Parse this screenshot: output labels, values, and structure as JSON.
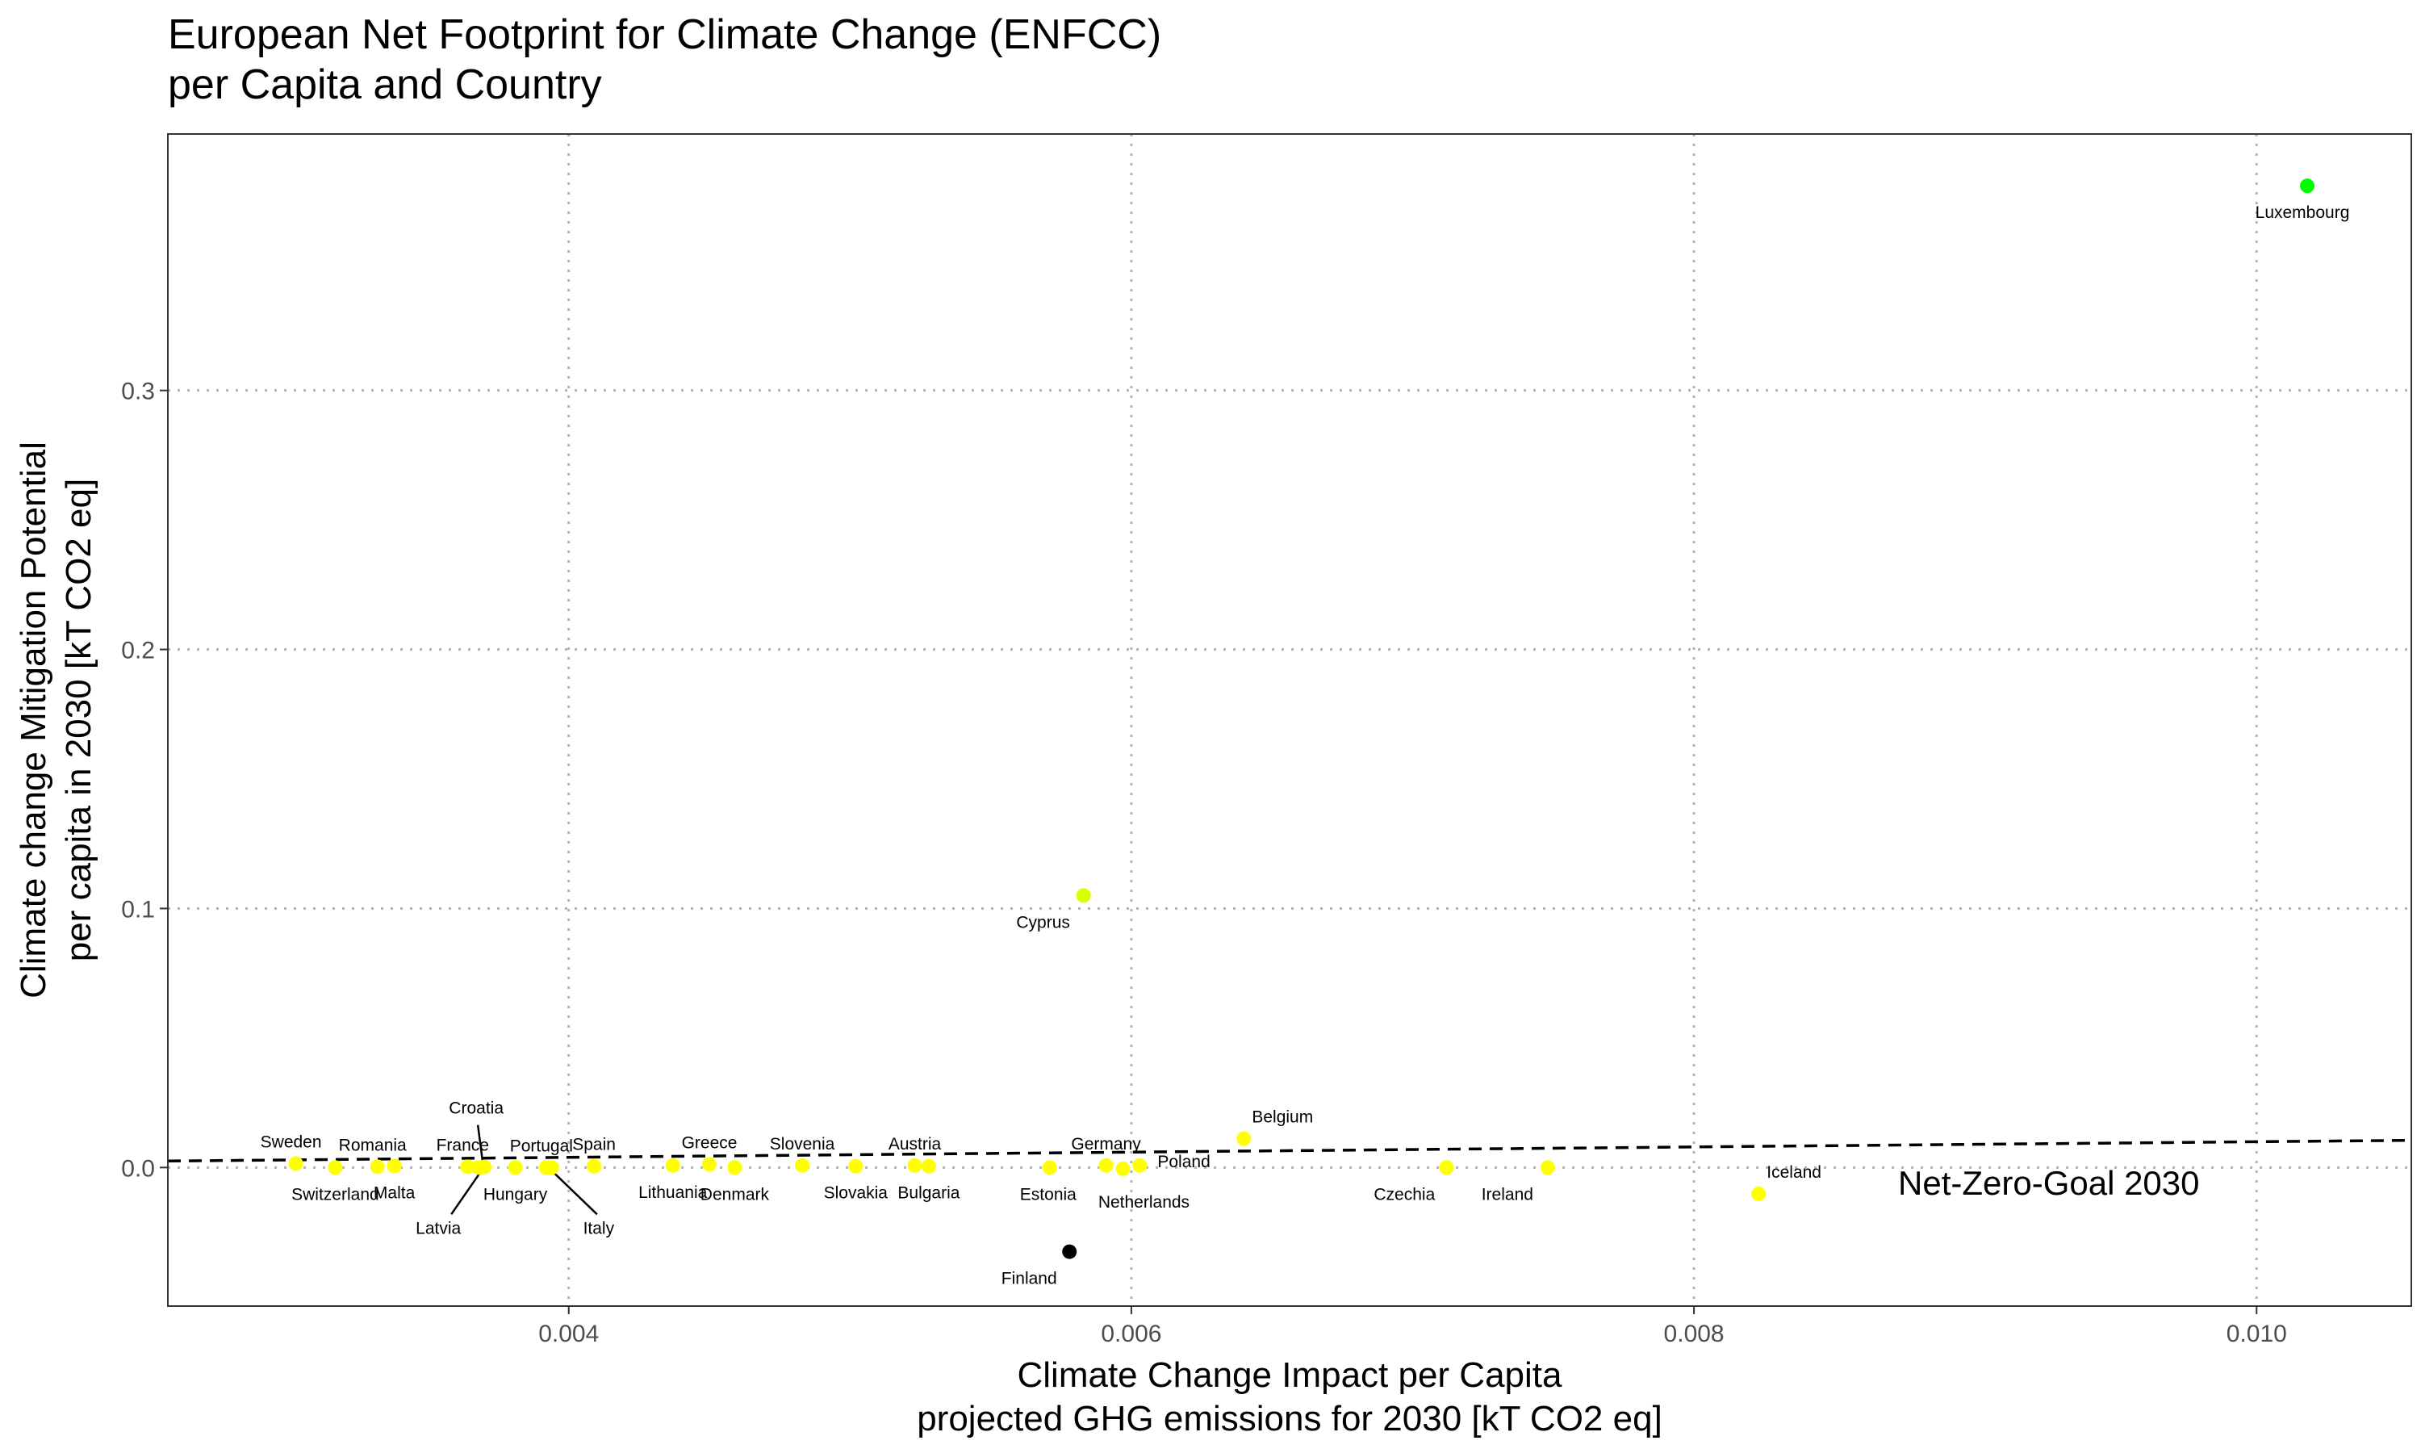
{
  "chart_data": {
    "type": "scatter",
    "title": [
      "European Net Footprint for Climate Change (ENFCC)",
      "per Capita and Country"
    ],
    "xlabel": [
      "Climate Change Impact per Capita",
      "projected GHG emissions for 2030 [kT CO2 eq]"
    ],
    "ylabel": [
      "Climate change Mitigation Potential",
      "per capita in 2030 [kT CO2 eq]"
    ],
    "xlim": [
      0.002575,
      0.01055
    ],
    "ylim": [
      -0.0535,
      0.399
    ],
    "xticks": [
      0.004,
      0.006,
      0.008,
      0.01
    ],
    "xtick_labels": [
      "0.004",
      "0.006",
      "0.008",
      "0.010"
    ],
    "yticks": [
      0.0,
      0.1,
      0.2,
      0.3
    ],
    "ytick_labels": [
      "0.0",
      "0.1",
      "0.2",
      "0.3"
    ],
    "grid": "dotted",
    "reference_line": {
      "label": "Net-Zero-Goal 2030",
      "x0": 0.002575,
      "y0": 0.0025,
      "x1": 0.01055,
      "y1": 0.0105
    },
    "points": [
      {
        "label": "Sweden",
        "x": 0.00303,
        "y": 0.0015,
        "color": "#ffff00",
        "label_pos": "above"
      },
      {
        "label": "Switzerland",
        "x": 0.00317,
        "y": 0.0,
        "color": "#ffff00",
        "label_pos": "below"
      },
      {
        "label": "Romania",
        "x": 0.00332,
        "y": 0.0003,
        "color": "#ffff00",
        "label_pos": "above"
      },
      {
        "label": "Malta",
        "x": 0.00338,
        "y": 0.0006,
        "color": "#ffff00",
        "label_pos": "below"
      },
      {
        "label": "France",
        "x": 0.00364,
        "y": 0.0003,
        "color": "#ffff00",
        "label_pos": "above"
      },
      {
        "label": "Latvia",
        "x": 0.00368,
        "y": 0.0,
        "color": "#ffff00",
        "label_pos": "below"
      },
      {
        "label": "Croatia",
        "x": 0.0037,
        "y": 0.0002,
        "color": "#ffff00",
        "label_pos": "above"
      },
      {
        "label": "Hungary",
        "x": 0.00381,
        "y": 0.0,
        "color": "#ffff00",
        "label_pos": "below"
      },
      {
        "label": "Portugal",
        "x": 0.00392,
        "y": 0.0,
        "color": "#ffff00",
        "label_pos": "above"
      },
      {
        "label": "Italy",
        "x": 0.00394,
        "y": 0.0,
        "color": "#ffff00",
        "label_pos": "below"
      },
      {
        "label": "Spain",
        "x": 0.00409,
        "y": 0.0005,
        "color": "#ffff00",
        "label_pos": "above"
      },
      {
        "label": "Lithuania",
        "x": 0.00437,
        "y": 0.0008,
        "color": "#ffff00",
        "label_pos": "below"
      },
      {
        "label": "Greece",
        "x": 0.0045,
        "y": 0.0012,
        "color": "#ffff00",
        "label_pos": "above"
      },
      {
        "label": "Denmark",
        "x": 0.00459,
        "y": 0.0,
        "color": "#ffff00",
        "label_pos": "below"
      },
      {
        "label": "Slovenia",
        "x": 0.00483,
        "y": 0.0008,
        "color": "#ffff00",
        "label_pos": "above"
      },
      {
        "label": "Slovakia",
        "x": 0.00502,
        "y": 0.0005,
        "color": "#ffff00",
        "label_pos": "below"
      },
      {
        "label": "Austria",
        "x": 0.00523,
        "y": 0.0008,
        "color": "#ffff00",
        "label_pos": "above"
      },
      {
        "label": "Bulgaria",
        "x": 0.00528,
        "y": 0.0005,
        "color": "#ffff00",
        "label_pos": "below"
      },
      {
        "label": "Estonia",
        "x": 0.00571,
        "y": 0.0,
        "color": "#ffff00",
        "label_pos": "below"
      },
      {
        "label": "Finland",
        "x": 0.00578,
        "y": -0.0325,
        "color": "#000000",
        "label_pos": "below"
      },
      {
        "label": "Cyprus",
        "x": 0.00583,
        "y": 0.105,
        "color": "#d9ff00",
        "label_pos": "below"
      },
      {
        "label": "Germany",
        "x": 0.00591,
        "y": 0.0008,
        "color": "#ffff00",
        "label_pos": "above"
      },
      {
        "label": "Netherlands",
        "x": 0.00597,
        "y": -0.0005,
        "color": "#ffff00",
        "label_pos": "below"
      },
      {
        "label": "Poland",
        "x": 0.00603,
        "y": 0.0008,
        "color": "#ffff00",
        "label_pos": "right"
      },
      {
        "label": "Belgium",
        "x": 0.0064,
        "y": 0.0112,
        "color": "#ffff00",
        "label_pos": "above"
      },
      {
        "label": "Czechia",
        "x": 0.00712,
        "y": 0.0,
        "color": "#ffff00",
        "label_pos": "below"
      },
      {
        "label": "Ireland",
        "x": 0.00748,
        "y": 0.0,
        "color": "#ffff00",
        "label_pos": "below"
      },
      {
        "label": "Iceland",
        "x": 0.00823,
        "y": -0.0102,
        "color": "#ffff00",
        "label_pos": "above"
      },
      {
        "label": "Luxembourg",
        "x": 0.01018,
        "y": 0.379,
        "color": "#00ff00",
        "label_pos": "below"
      }
    ]
  }
}
